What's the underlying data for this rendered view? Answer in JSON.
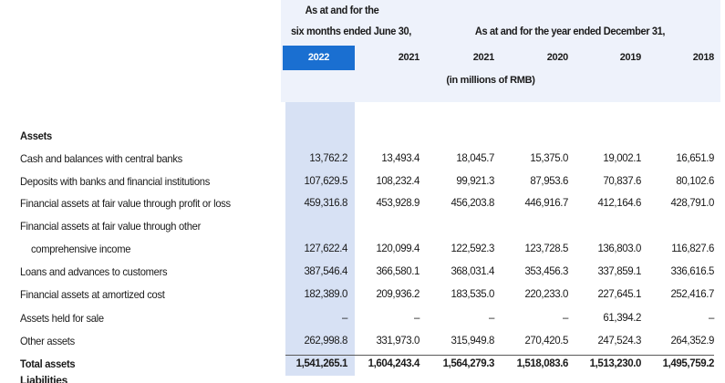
{
  "header": {
    "group_left_line1": "As at and for the",
    "group_left_line2": "six months ended June 30,",
    "group_right": "As at and for the year ended December 31,",
    "units": "(in millions of RMB)",
    "years": [
      "2022",
      "2021",
      "2021",
      "2020",
      "2019",
      "2018"
    ],
    "active_year_index": 0
  },
  "section_title": "Assets",
  "rows": [
    {
      "label": "Cash and balances with central banks",
      "values": [
        "13,762.2",
        "13,493.4",
        "18,045.7",
        "15,375.0",
        "19,002.1",
        "16,651.9"
      ]
    },
    {
      "label": "Deposits with banks and financial institutions",
      "values": [
        "107,629.5",
        "108,232.4",
        "99,921.3",
        "87,953.6",
        "70,837.6",
        "80,102.6"
      ]
    },
    {
      "label": "Financial assets at fair value through profit or loss",
      "values": [
        "459,316.8",
        "453,928.9",
        "456,203.8",
        "446,916.7",
        "412,164.6",
        "428,791.0"
      ]
    },
    {
      "label": "Financial assets at fair value through other",
      "values": [
        "",
        "",
        "",
        "",
        "",
        ""
      ]
    },
    {
      "label": "comprehensive income",
      "indent": true,
      "values": [
        "127,622.4",
        "120,099.4",
        "122,592.3",
        "123,728.5",
        "136,803.0",
        "116,827.6"
      ]
    },
    {
      "label": "Loans and advances to customers",
      "values": [
        "387,546.4",
        "366,580.1",
        "368,031.4",
        "353,456.3",
        "337,859.1",
        "336,616.5"
      ]
    },
    {
      "label": "Financial assets at amortized cost",
      "values": [
        "182,389.0",
        "209,936.2",
        "183,535.0",
        "220,233.0",
        "227,645.1",
        "252,416.7"
      ]
    },
    {
      "label": "Assets held for sale",
      "values": [
        "–",
        "–",
        "–",
        "–",
        "61,394.2",
        "–"
      ]
    },
    {
      "label": "Other assets",
      "values": [
        "262,998.8",
        "331,973.0",
        "315,949.8",
        "270,420.5",
        "247,524.3",
        "264,352.9"
      ]
    }
  ],
  "total": {
    "label": "Total assets",
    "values": [
      "1,541,265.1",
      "1,604,243.4",
      "1,564,279.3",
      "1,518,083.6",
      "1,513,230.0",
      "1,495,759.2"
    ]
  },
  "next_section_cut": "Liabilities"
}
